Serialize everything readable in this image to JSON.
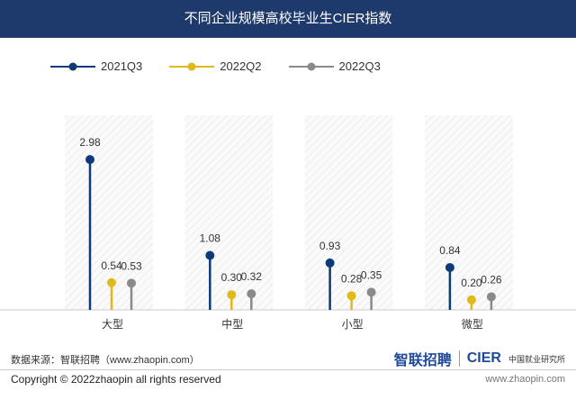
{
  "chart_data": {
    "type": "lollipop",
    "title": "不同企业规模高校毕业生CIER指数",
    "categories": [
      "大型",
      "中型",
      "小型",
      "微型"
    ],
    "series": [
      {
        "name": "2021Q3",
        "color": "#0f3a7a",
        "values": [
          2.98,
          1.08,
          0.93,
          0.84
        ]
      },
      {
        "name": "2022Q2",
        "color": "#e0b91a",
        "values": [
          0.54,
          0.3,
          0.28,
          0.2
        ]
      },
      {
        "name": "2022Q3",
        "color": "#8a8a8a",
        "values": [
          0.53,
          0.32,
          0.35,
          0.26
        ]
      }
    ],
    "ylim": [
      0,
      3.2
    ],
    "legend": "top-left"
  },
  "footer": {
    "source": "数据来源：智联招聘（www.zhaopin.com）",
    "logo_zhaopin": "智联招聘",
    "logo_cier": "CIER",
    "logo_cier_cn": "中国就业研究所",
    "copyright": "Copyright ©  2022zhaopin all rights reserved",
    "url": "www.zhaopin.com"
  }
}
